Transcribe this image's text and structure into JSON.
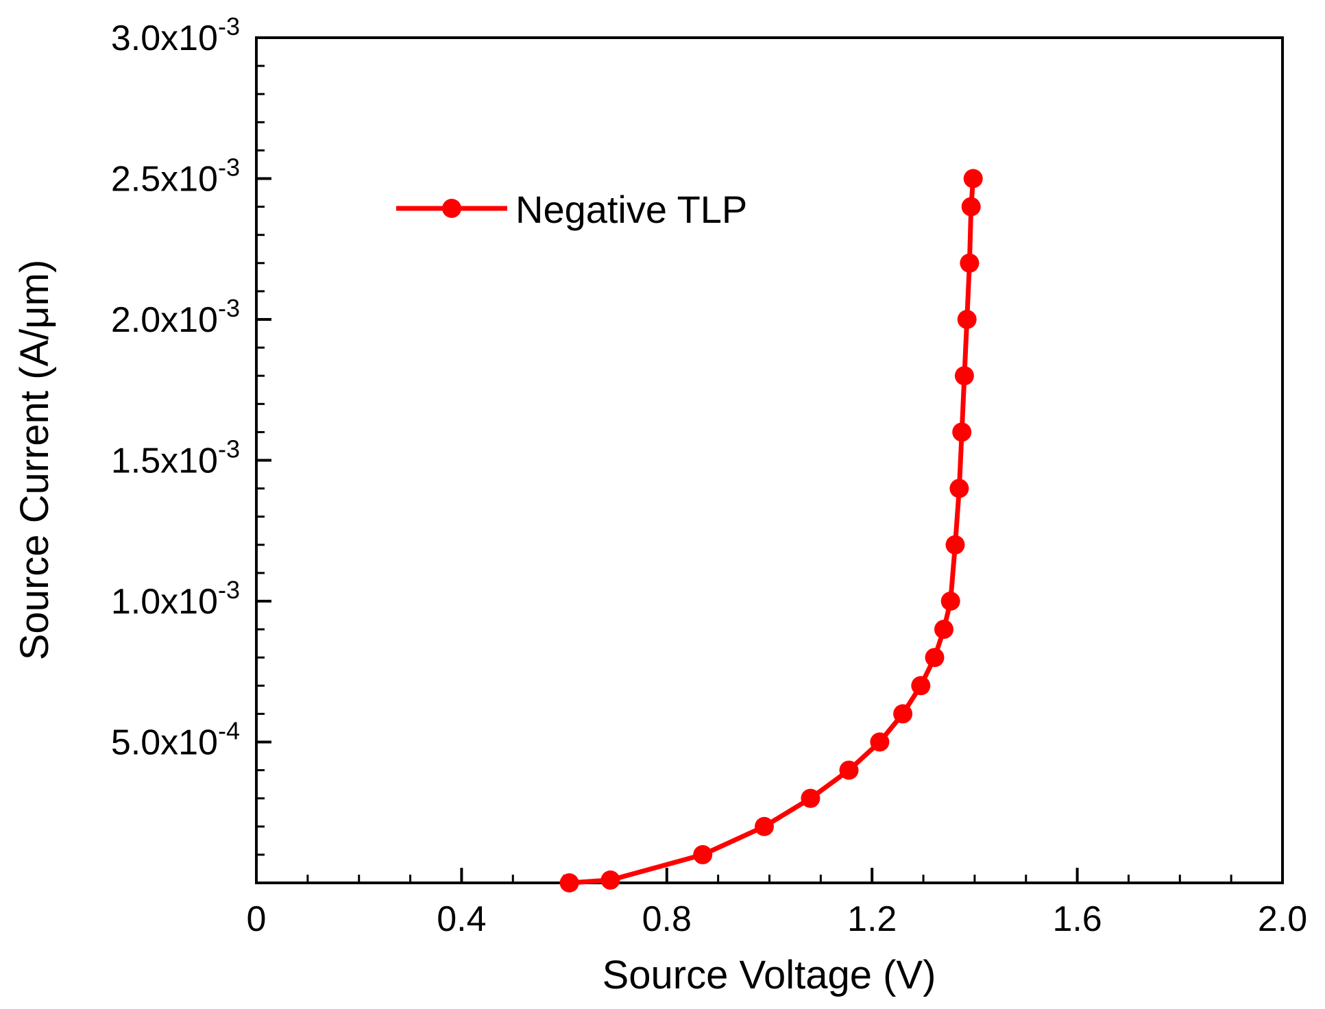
{
  "chart_data": {
    "type": "line",
    "title": "",
    "xlabel": "Source Voltage (V)",
    "ylabel": "Source Current (A/μm)",
    "xlim": [
      0,
      2.0
    ],
    "ylim": [
      0,
      0.003
    ],
    "x_ticks": [
      0,
      0.4,
      0.8,
      1.2,
      1.6,
      2.0
    ],
    "x_tick_labels": [
      "0",
      "0.4",
      "0.8",
      "1.2",
      "1.6",
      "2.0"
    ],
    "y_ticks": [
      0.0005,
      0.001,
      0.0015,
      0.002,
      0.0025,
      0.003
    ],
    "y_tick_labels": [
      {
        "mantissa": "5.0x10",
        "exponent": "-4"
      },
      {
        "mantissa": "1.0x10",
        "exponent": "-3"
      },
      {
        "mantissa": "1.5x10",
        "exponent": "-3"
      },
      {
        "mantissa": "2.0x10",
        "exponent": "-3"
      },
      {
        "mantissa": "2.5x10",
        "exponent": "-3"
      },
      {
        "mantissa": "3.0x10",
        "exponent": "-3"
      }
    ],
    "legend_position": "top-left",
    "grid": false,
    "series": [
      {
        "name": "Negative TLP",
        "color": "#ff0000",
        "marker": "circle",
        "x": [
          0.61,
          0.69,
          0.87,
          0.99,
          1.08,
          1.155,
          1.215,
          1.26,
          1.295,
          1.322,
          1.34,
          1.353,
          1.362,
          1.37,
          1.375,
          1.38,
          1.385,
          1.39,
          1.393,
          1.397
        ],
        "y": [
          0.0,
          1e-05,
          0.0001,
          0.0002,
          0.0003,
          0.0004,
          0.0005,
          0.0006,
          0.0007,
          0.0008,
          0.0009,
          0.001,
          0.0012,
          0.0014,
          0.0016,
          0.0018,
          0.002,
          0.0022,
          0.0024,
          0.0025
        ]
      }
    ]
  }
}
